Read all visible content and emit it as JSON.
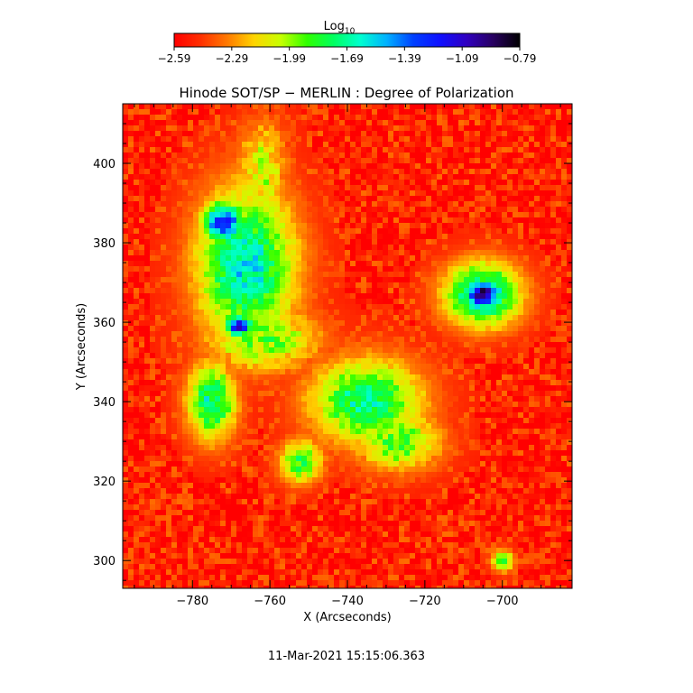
{
  "chart_data": {
    "type": "heatmap",
    "title": "Hinode SOT/SP − MERLIN : Degree of Polarization",
    "xlabel": "X (Arcseconds)",
    "ylabel": "Y (Arcseconds)",
    "xlim": [
      -798,
      -682
    ],
    "ylim": [
      293,
      415
    ],
    "x_ticks": [
      -780,
      -760,
      -740,
      -720,
      -700
    ],
    "y_ticks": [
      300,
      320,
      340,
      360,
      380,
      400
    ],
    "x_tick_labels": [
      "−780",
      "−760",
      "−740",
      "−720",
      "−700"
    ],
    "y_tick_labels": [
      "300",
      "320",
      "340",
      "360",
      "380",
      "400"
    ],
    "colorbar": {
      "label": "Log",
      "label_subscript": "10",
      "range": [
        -2.59,
        -0.79
      ],
      "ticks": [
        -2.59,
        -2.29,
        -1.99,
        -1.69,
        -1.39,
        -1.09,
        -0.79
      ],
      "tick_labels": [
        "−2.59",
        "−2.29",
        "−1.99",
        "−1.69",
        "−1.39",
        "−1.09",
        "−0.79"
      ],
      "colormap": [
        "#ff0000",
        "#ff3000",
        "#ff7a00",
        "#ffd400",
        "#c8ff00",
        "#30ff00",
        "#00ff60",
        "#00ffd0",
        "#00b0ff",
        "#0040ff",
        "#1010ff",
        "#3000c0",
        "#280060",
        "#000000"
      ]
    },
    "features": [
      {
        "x": -705,
        "y": 367,
        "rx": 5,
        "ry": 4,
        "level": -0.85
      },
      {
        "x": -705,
        "y": 367,
        "rx": 11,
        "ry": 9,
        "level": -1.55
      },
      {
        "x": -766,
        "y": 374,
        "rx": 14,
        "ry": 22,
        "level": -1.6
      },
      {
        "x": -772,
        "y": 385,
        "rx": 6,
        "ry": 6,
        "level": -1.2
      },
      {
        "x": -768,
        "y": 359,
        "rx": 4,
        "ry": 3,
        "level": -1.05
      },
      {
        "x": -762,
        "y": 356,
        "rx": 16,
        "ry": 9,
        "level": -1.9
      },
      {
        "x": -775,
        "y": 340,
        "rx": 7,
        "ry": 11,
        "level": -1.7
      },
      {
        "x": -735,
        "y": 340,
        "rx": 16,
        "ry": 12,
        "level": -1.7
      },
      {
        "x": -727,
        "y": 330,
        "rx": 12,
        "ry": 8,
        "level": -1.85
      },
      {
        "x": -752,
        "y": 325,
        "rx": 6,
        "ry": 6,
        "level": -1.8
      },
      {
        "x": -762,
        "y": 398,
        "rx": 7,
        "ry": 14,
        "level": -2.05
      },
      {
        "x": -700,
        "y": 300,
        "rx": 3,
        "ry": 3,
        "level": -1.8
      }
    ]
  },
  "footer": {
    "timestamp": "11-Mar-2021 15:15:06.363"
  }
}
